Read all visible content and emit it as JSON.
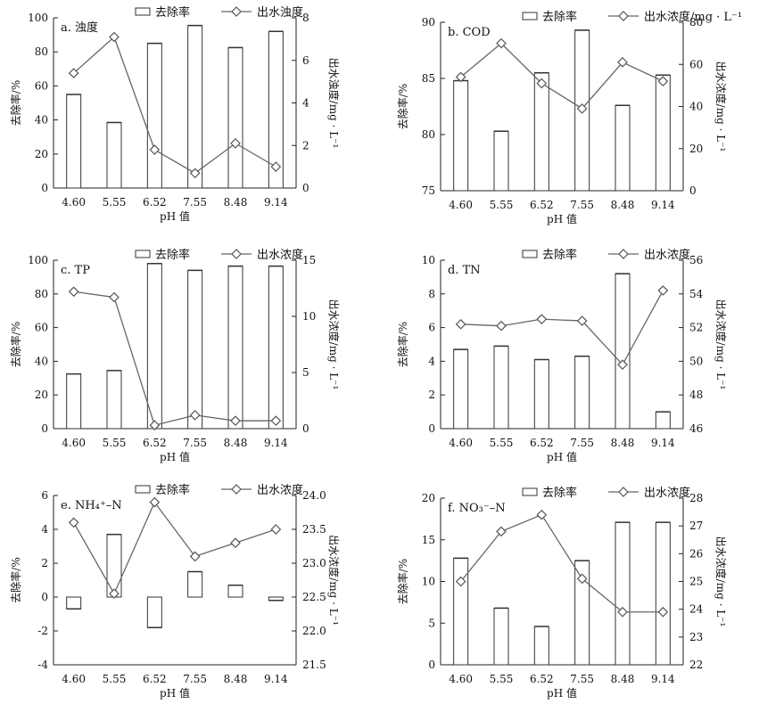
{
  "chart_data": [
    {
      "type": "bar",
      "panel_label": "a. 浊度",
      "categories": [
        "4.60",
        "5.55",
        "6.52",
        "7.55",
        "8.48",
        "9.14"
      ],
      "xlabel": "pH 值",
      "ylabel": "去除率/%",
      "y2label": "出水浊度/mg · L⁻¹",
      "ylim": [
        0,
        100
      ],
      "y2lim": [
        0,
        8
      ],
      "yticks": [
        0,
        20,
        40,
        60,
        80,
        100
      ],
      "y2ticks": [
        0,
        2,
        4,
        6,
        8
      ],
      "series": [
        {
          "name": "去除率",
          "kind": "bar",
          "axis": "left",
          "values": [
            55,
            38.5,
            85,
            95.5,
            82.5,
            92
          ]
        },
        {
          "name": "出水浊度",
          "kind": "line",
          "axis": "right",
          "values": [
            5.4,
            7.1,
            1.8,
            0.7,
            2.1,
            1.0
          ]
        }
      ]
    },
    {
      "type": "bar",
      "panel_label": "b. COD",
      "categories": [
        "4.60",
        "5.55",
        "6.52",
        "7.55",
        "8.48",
        "9.14"
      ],
      "xlabel": "pH 值",
      "ylabel": "去除率/%",
      "y2label": "出水浓度/mg · L⁻¹",
      "ylim": [
        75,
        90
      ],
      "y2lim": [
        0,
        80
      ],
      "yticks": [
        75,
        80,
        85,
        90
      ],
      "y2ticks": [
        0,
        20,
        40,
        60,
        80
      ],
      "series": [
        {
          "name": "去除率",
          "kind": "bar",
          "axis": "left",
          "values": [
            84.8,
            80.3,
            85.5,
            89.3,
            82.6,
            85.3
          ]
        },
        {
          "name": "出水浓度/mg · L⁻¹",
          "kind": "line",
          "axis": "right",
          "values": [
            54,
            70,
            51,
            39,
            61,
            52
          ]
        }
      ]
    },
    {
      "type": "bar",
      "panel_label": "c. TP",
      "categories": [
        "4.60",
        "5.55",
        "6.52",
        "7.55",
        "8.48",
        "9.14"
      ],
      "xlabel": "pH 值",
      "ylabel": "去除率/%",
      "y2label": "出水浓度/mg · L⁻¹",
      "ylim": [
        0,
        100
      ],
      "y2lim": [
        0,
        15
      ],
      "yticks": [
        0,
        20,
        40,
        60,
        80,
        100
      ],
      "y2ticks": [
        0,
        5,
        10,
        15
      ],
      "series": [
        {
          "name": "去除率",
          "kind": "bar",
          "axis": "left",
          "values": [
            32.5,
            34.5,
            98,
            94,
            96.5,
            96.5
          ]
        },
        {
          "name": "出水浓度",
          "kind": "line",
          "axis": "right",
          "values": [
            12.2,
            11.7,
            0.3,
            1.2,
            0.7,
            0.7
          ]
        }
      ]
    },
    {
      "type": "bar",
      "panel_label": "d. TN",
      "categories": [
        "4.60",
        "5.55",
        "6.52",
        "7.55",
        "8.48",
        "9.14"
      ],
      "xlabel": "pH 值",
      "ylabel": "去除率/%",
      "y2label": "出水浓度/mg · L⁻¹",
      "ylim": [
        0,
        10
      ],
      "y2lim": [
        46,
        56
      ],
      "yticks": [
        0,
        2,
        4,
        6,
        8,
        10
      ],
      "y2ticks": [
        46,
        48,
        50,
        52,
        54,
        56
      ],
      "series": [
        {
          "name": "去除率",
          "kind": "bar",
          "axis": "left",
          "values": [
            4.7,
            4.9,
            4.1,
            4.3,
            9.2,
            1.0
          ]
        },
        {
          "name": "出水浓度",
          "kind": "line",
          "axis": "right",
          "values": [
            52.2,
            52.1,
            52.5,
            52.4,
            49.8,
            54.2
          ]
        }
      ]
    },
    {
      "type": "bar",
      "panel_label": "e. NH₄⁺–N",
      "categories": [
        "4.60",
        "5.55",
        "6.52",
        "7.55",
        "8.48",
        "9.14"
      ],
      "xlabel": "pH 值",
      "ylabel": "去除率/%",
      "y2label": "出水浓度/mg · L⁻¹",
      "ylim": [
        -4,
        6
      ],
      "y2lim": [
        21.5,
        24.0
      ],
      "yticks": [
        -4,
        -2,
        0,
        2,
        4,
        6
      ],
      "y2ticks": [
        "21.5",
        "22.0",
        "22.5",
        "23.0",
        "23.5",
        "24.0"
      ],
      "series": [
        {
          "name": "去除率",
          "kind": "bar",
          "axis": "left",
          "values": [
            -0.7,
            3.7,
            -1.8,
            1.5,
            0.7,
            -0.2
          ]
        },
        {
          "name": "出水浓度",
          "kind": "line",
          "axis": "right",
          "values": [
            23.6,
            22.55,
            23.9,
            23.1,
            23.3,
            23.5
          ]
        }
      ]
    },
    {
      "type": "bar",
      "panel_label": "f. NO₃⁻–N",
      "categories": [
        "4.60",
        "5.55",
        "6.52",
        "7.55",
        "8.48",
        "9.14"
      ],
      "xlabel": "pH 值",
      "ylabel": "去除率/%",
      "y2label": "出水浓度/mg · L⁻¹",
      "ylim": [
        0,
        20
      ],
      "y2lim": [
        22,
        28
      ],
      "yticks": [
        0,
        5,
        10,
        15,
        20
      ],
      "y2ticks": [
        22,
        23,
        24,
        25,
        26,
        27,
        28
      ],
      "series": [
        {
          "name": "去除率",
          "kind": "bar",
          "axis": "left",
          "values": [
            12.8,
            6.8,
            4.6,
            12.5,
            17.1,
            17.1
          ]
        },
        {
          "name": "出水浓度",
          "kind": "line",
          "axis": "right",
          "values": [
            25.0,
            26.8,
            27.4,
            25.1,
            23.9,
            23.9
          ]
        }
      ]
    }
  ]
}
